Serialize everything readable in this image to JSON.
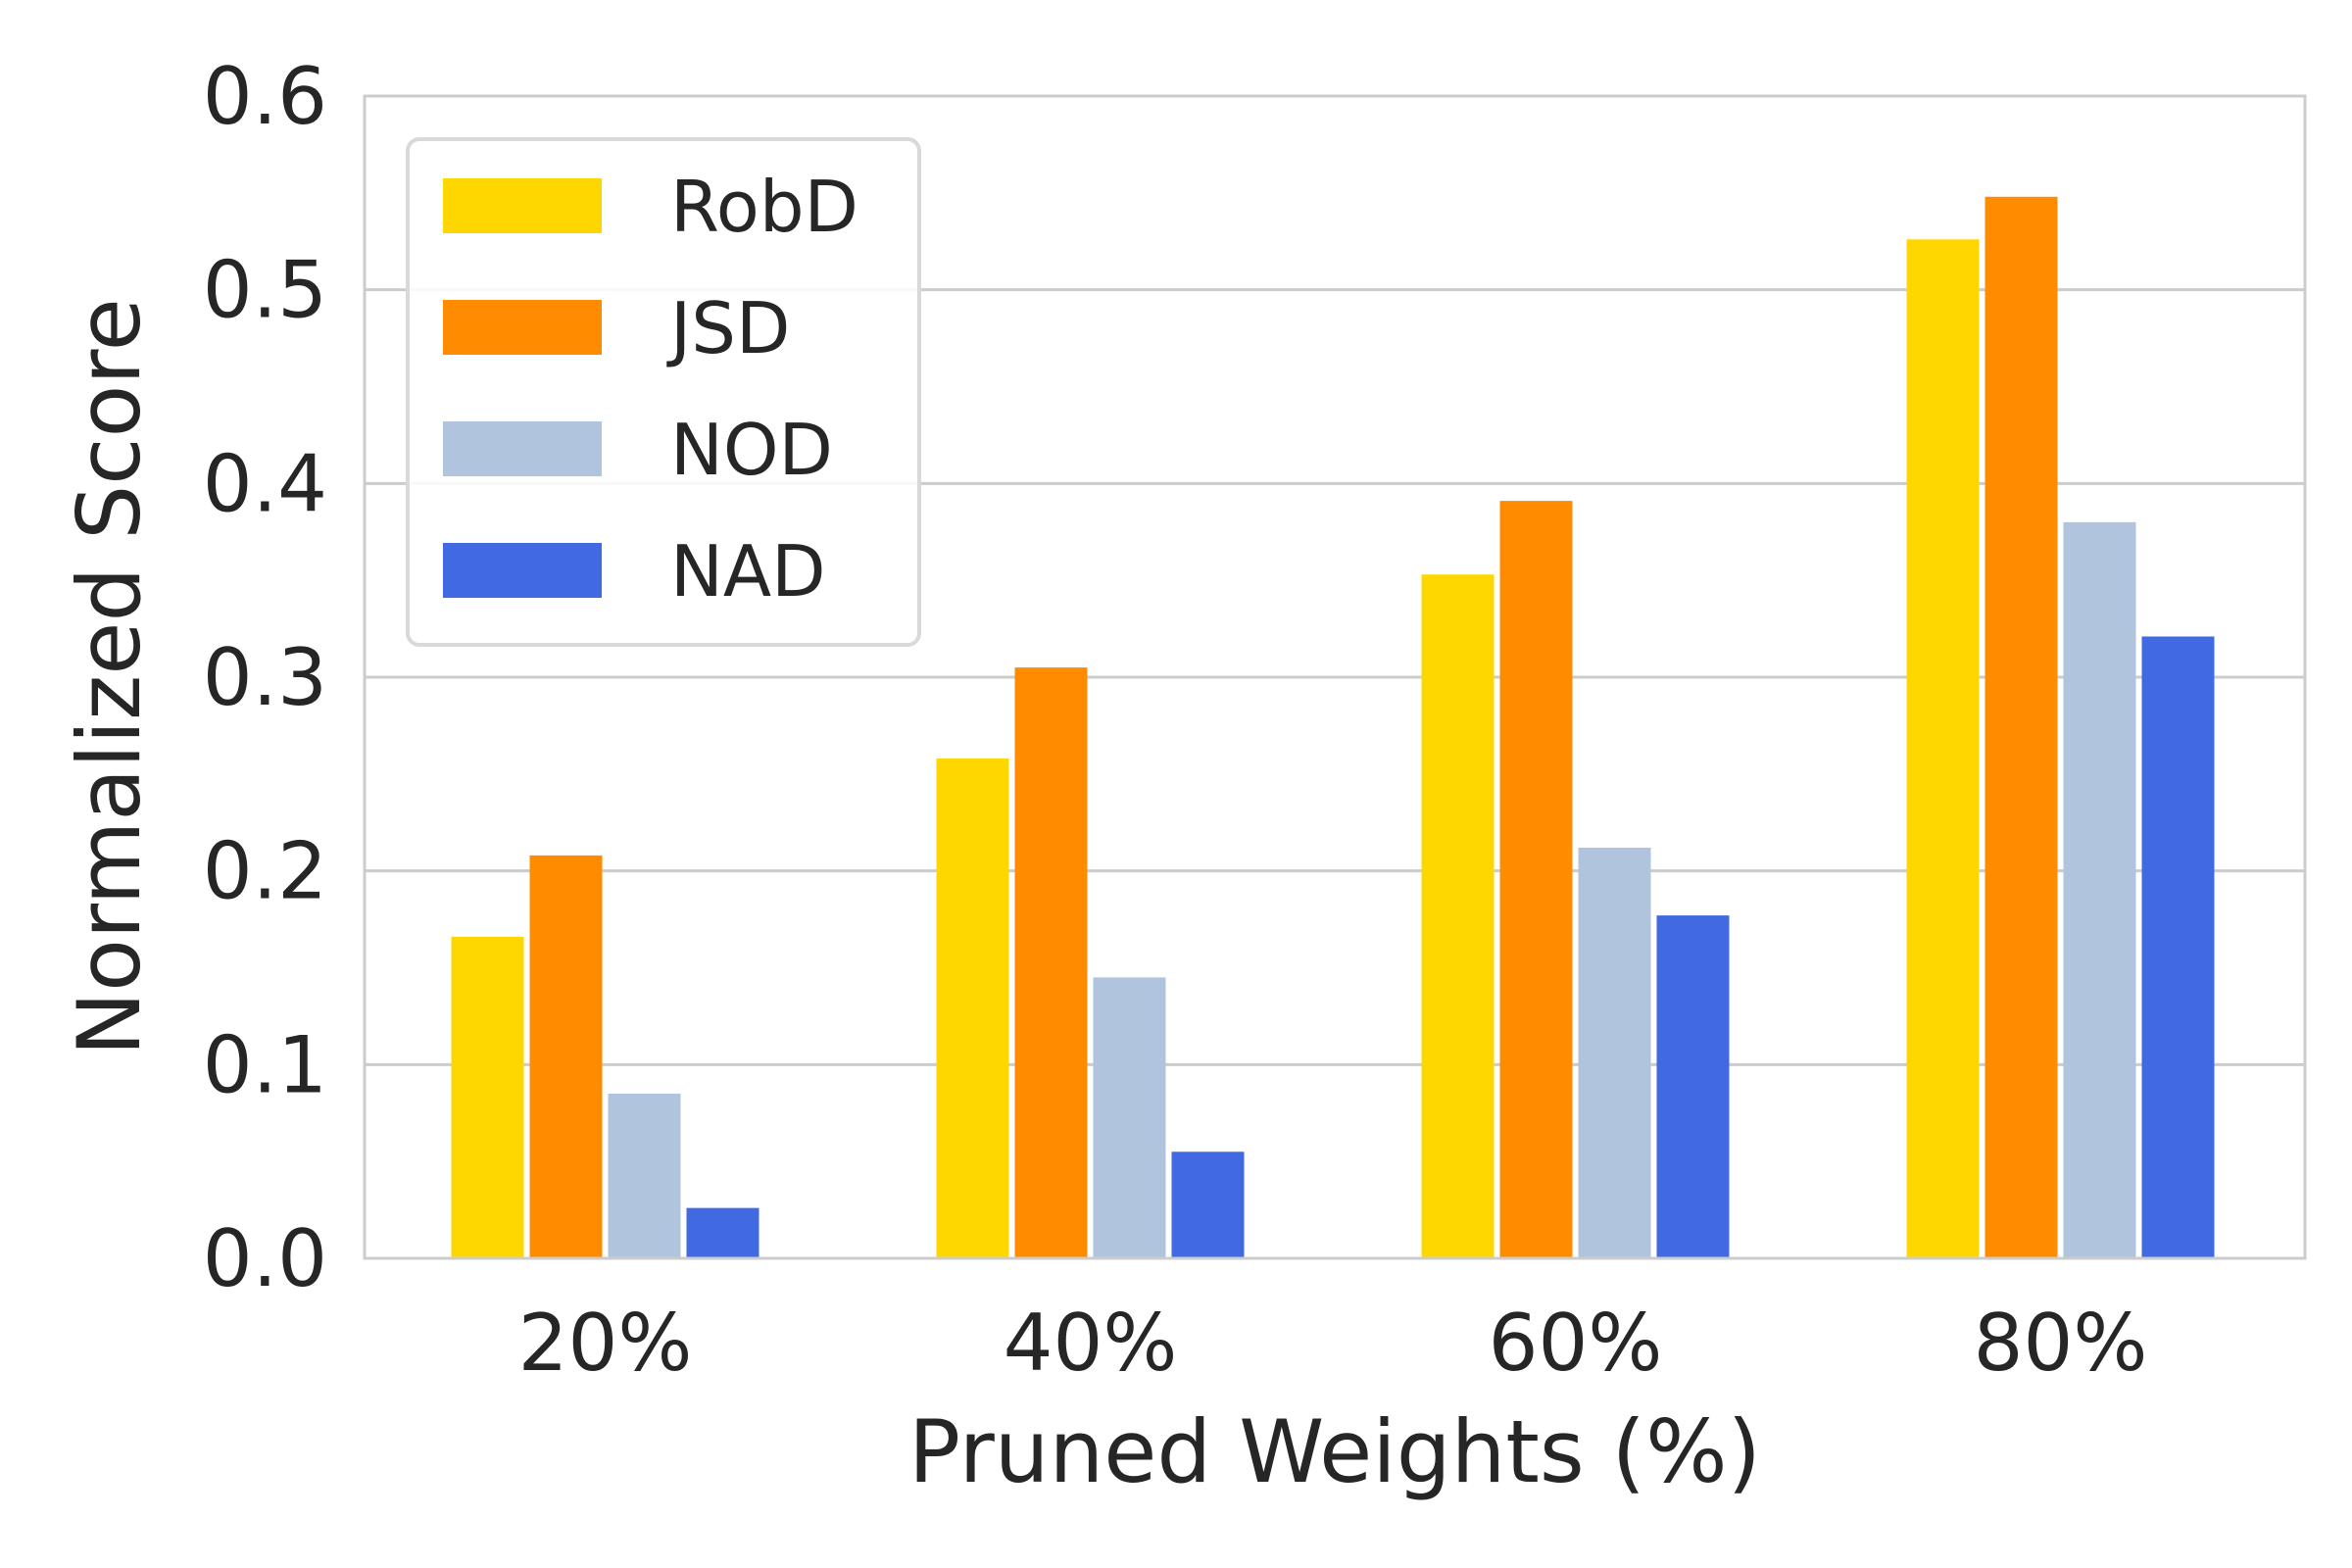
{
  "chart_data": {
    "type": "bar",
    "title": "",
    "xlabel": "Pruned Weights (%)",
    "ylabel": "Normalized Score",
    "categories": [
      "20%",
      "40%",
      "60%",
      "80%"
    ],
    "ylim": [
      0,
      0.6
    ],
    "yticks": [
      "0.0",
      "0.1",
      "0.2",
      "0.3",
      "0.4",
      "0.5",
      "0.6"
    ],
    "grid": "horizontal",
    "legend_position": "top-left",
    "series": [
      {
        "name": "RobD",
        "color": "#FFD700",
        "values": [
          0.166,
          0.258,
          0.353,
          0.526
        ]
      },
      {
        "name": "JSD",
        "color": "#FF8C00",
        "values": [
          0.208,
          0.305,
          0.391,
          0.548
        ]
      },
      {
        "name": "NOD",
        "color": "#B0C4DE",
        "values": [
          0.085,
          0.145,
          0.212,
          0.38
        ]
      },
      {
        "name": "NAD",
        "color": "#4169E1",
        "values": [
          0.026,
          0.055,
          0.177,
          0.321
        ]
      }
    ]
  }
}
